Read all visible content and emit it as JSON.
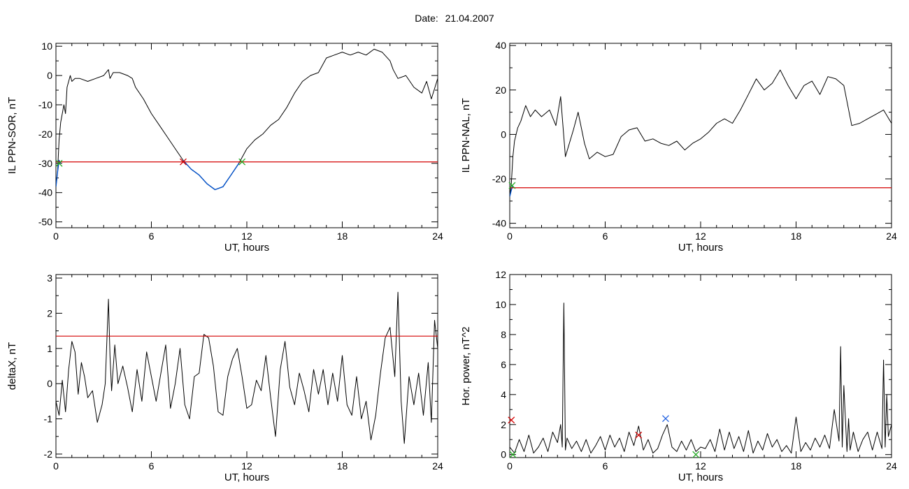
{
  "header": {
    "date_label": "Date:",
    "date_value": "21.04.2007"
  },
  "colors": {
    "trace": "#000000",
    "threshold": "#d40000",
    "highlight": "#0050c8",
    "marker_red": "#d40000",
    "marker_green": "#22aa22",
    "marker_blue": "#2060e0"
  },
  "chart_data": [
    {
      "type": "line",
      "panel": "top-left",
      "xlabel": "UT, hours",
      "ylabel": "IL PPN-SOR, nT",
      "xlim": [
        0,
        24
      ],
      "ylim": [
        -52,
        11
      ],
      "xticks": [
        "0",
        "6",
        "12",
        "18",
        "24"
      ],
      "yticks": [
        "10",
        "0",
        "-10",
        "-20",
        "-30",
        "-40",
        "-50"
      ],
      "ytick_values": [
        10,
        0,
        -10,
        -20,
        -30,
        -40,
        -50
      ],
      "threshold": -29.5,
      "series": [
        {
          "style": "black",
          "x": [
            0,
            0.1,
            0.2,
            0.3,
            0.5,
            0.6,
            0.7,
            0.9,
            1.0,
            1.2,
            1.5,
            2.0,
            2.5,
            3.0,
            3.3,
            3.4,
            3.6,
            4.0,
            4.5,
            4.8,
            5.0,
            5.5,
            6.0,
            6.5,
            7.0,
            7.5,
            8.0,
            8.5,
            9.0,
            9.5,
            10.0,
            10.5,
            11.0,
            11.5,
            12.0,
            12.5,
            13.0,
            13.5,
            14.0,
            14.5,
            15.0,
            15.5,
            16.0,
            16.5,
            17.0,
            17.5,
            18.0,
            18.5,
            19.0,
            19.5,
            20.0,
            20.5,
            21.0,
            21.2,
            21.5,
            22.0,
            22.5,
            23.0,
            23.3,
            23.6,
            24.0
          ],
          "y": [
            -38,
            -33,
            -22,
            -16,
            -10,
            -13,
            -4,
            0,
            -2,
            -1,
            -1,
            -2,
            -1,
            0,
            2,
            -1,
            1,
            1,
            0,
            -1,
            -4,
            -8,
            -13,
            -17,
            -21,
            -25,
            -29,
            -32,
            -34,
            -37,
            -39,
            -38,
            -34,
            -30,
            -25,
            -22,
            -20,
            -17,
            -15,
            -11,
            -6,
            -2,
            0,
            1,
            6,
            7,
            8,
            7,
            8,
            7,
            9,
            8,
            5,
            2,
            -1,
            0,
            -4,
            -6,
            -2,
            -8,
            -1
          ]
        },
        {
          "style": "blue",
          "name": "",
          "x": [
            0,
            0.1,
            0.2,
            0.3,
            8.0,
            8.5,
            9.0,
            9.5,
            10.0,
            10.5,
            11.0,
            11.5
          ],
          "y": [
            -38,
            -33,
            -29,
            -30,
            -29,
            -32,
            -34,
            -37,
            -39,
            -38,
            -34,
            -30
          ],
          "segments": [
            [
              0,
              3
            ],
            [
              4,
              11
            ]
          ]
        }
      ],
      "markers": [
        {
          "x": 0.2,
          "y": -30,
          "color": "green"
        },
        {
          "x": 8.0,
          "y": -29.5,
          "color": "red"
        },
        {
          "x": 11.7,
          "y": -29.5,
          "color": "green"
        }
      ]
    },
    {
      "type": "line",
      "panel": "top-right",
      "xlabel": "UT, hours",
      "ylabel": "IL PPN-NAL, nT",
      "xlim": [
        0,
        24
      ],
      "ylim": [
        -42,
        41
      ],
      "xticks": [
        "0",
        "6",
        "12",
        "18",
        "24"
      ],
      "yticks": [
        "40",
        "20",
        "0",
        "-20",
        "-40"
      ],
      "ytick_values": [
        40,
        20,
        0,
        -20,
        -40
      ],
      "threshold": -24,
      "series": [
        {
          "style": "black",
          "x": [
            0,
            0.1,
            0.2,
            0.3,
            0.5,
            0.7,
            1.0,
            1.3,
            1.6,
            2.0,
            2.5,
            2.9,
            3.2,
            3.5,
            4.0,
            4.3,
            4.7,
            5.0,
            5.5,
            6.0,
            6.5,
            7.0,
            7.5,
            8.0,
            8.5,
            9.0,
            9.5,
            10.0,
            10.5,
            11.0,
            11.5,
            12.0,
            12.5,
            13.0,
            13.5,
            14.0,
            14.5,
            15.0,
            15.5,
            16.0,
            16.5,
            17.0,
            17.5,
            18.0,
            18.5,
            19.0,
            19.5,
            20.0,
            20.5,
            21.0,
            21.5,
            22.0,
            22.5,
            23.0,
            23.5,
            24.0
          ],
          "y": [
            -28,
            -22,
            -10,
            -3,
            3,
            6,
            13,
            8,
            11,
            8,
            11,
            4,
            17,
            -10,
            2,
            10,
            -4,
            -11,
            -8,
            -10,
            -9,
            -1,
            2,
            3,
            -3,
            -2,
            -4,
            -5,
            -3,
            -7,
            -4,
            -2,
            1,
            5,
            7,
            5,
            11,
            18,
            25,
            20,
            23,
            29,
            22,
            16,
            22,
            24,
            18,
            26,
            25,
            22,
            4,
            5,
            7,
            9,
            11,
            5
          ]
        },
        {
          "style": "blue",
          "name": "",
          "x": [
            0,
            0.1,
            0.2
          ],
          "y": [
            -28,
            -25,
            -23
          ],
          "segments": [
            [
              0,
              2
            ]
          ]
        }
      ],
      "markers": [
        {
          "x": 0.15,
          "y": -23,
          "color": "green"
        }
      ]
    },
    {
      "type": "line",
      "panel": "bottom-left",
      "xlabel": "UT, hours",
      "ylabel": "deltaX, nT",
      "xlim": [
        0,
        24
      ],
      "ylim": [
        -2.1,
        3.1
      ],
      "xticks": [
        "0",
        "6",
        "12",
        "18",
        "24"
      ],
      "yticks": [
        "3",
        "2",
        "1",
        "0",
        "-1",
        "-2"
      ],
      "ytick_values": [
        3,
        2,
        1,
        0,
        -1,
        -2
      ],
      "threshold": 1.35,
      "series": [
        {
          "style": "black",
          "x": [
            0,
            0.2,
            0.4,
            0.6,
            0.8,
            1.0,
            1.2,
            1.4,
            1.6,
            1.8,
            2.0,
            2.3,
            2.6,
            2.9,
            3.1,
            3.3,
            3.4,
            3.5,
            3.7,
            3.9,
            4.2,
            4.5,
            4.8,
            5.1,
            5.4,
            5.7,
            6.0,
            6.3,
            6.6,
            6.9,
            7.2,
            7.5,
            7.8,
            8.1,
            8.4,
            8.7,
            9.0,
            9.3,
            9.6,
            9.9,
            10.2,
            10.5,
            10.8,
            11.1,
            11.4,
            11.7,
            12.0,
            12.3,
            12.6,
            12.9,
            13.2,
            13.5,
            13.8,
            14.1,
            14.4,
            14.7,
            15.0,
            15.3,
            15.6,
            15.9,
            16.2,
            16.5,
            16.8,
            17.1,
            17.4,
            17.7,
            18.0,
            18.3,
            18.6,
            18.9,
            19.2,
            19.5,
            19.8,
            20.1,
            20.4,
            20.7,
            21.0,
            21.3,
            21.5,
            21.7,
            21.9,
            22.2,
            22.5,
            22.8,
            23.1,
            23.4,
            23.6,
            23.8,
            24.0
          ],
          "y": [
            -0.5,
            -0.9,
            0.1,
            -0.8,
            0.4,
            1.2,
            0.9,
            -0.3,
            0.6,
            0.2,
            -0.4,
            -0.2,
            -1.1,
            -0.6,
            0.0,
            2.4,
            0.8,
            -0.2,
            1.1,
            0.0,
            0.5,
            -0.1,
            -0.8,
            0.4,
            -0.5,
            0.9,
            0.2,
            -0.5,
            0.3,
            1.1,
            -0.7,
            0.0,
            1.0,
            -0.6,
            -1.0,
            0.2,
            0.3,
            1.4,
            1.3,
            0.5,
            -0.8,
            -0.9,
            0.2,
            0.7,
            1.0,
            0.2,
            -0.7,
            -0.6,
            0.1,
            -0.2,
            0.8,
            -0.4,
            -1.5,
            0.4,
            1.2,
            -0.1,
            -0.6,
            0.3,
            -0.2,
            -0.8,
            0.4,
            -0.3,
            0.4,
            -0.6,
            0.3,
            -0.5,
            0.8,
            -0.6,
            -0.9,
            0.2,
            -1.0,
            -0.5,
            -1.6,
            -0.9,
            0.3,
            1.3,
            1.6,
            0.2,
            2.6,
            -0.5,
            -1.7,
            0.2,
            -0.6,
            0.3,
            -0.9,
            0.6,
            -1.1,
            1.8,
            1.0
          ]
        }
      ],
      "markers": []
    },
    {
      "type": "line",
      "panel": "bottom-right",
      "xlabel": "UT, hours",
      "ylabel": "Hor. power, nT^2",
      "xlim": [
        0,
        24
      ],
      "ylim": [
        -0.2,
        12
      ],
      "xticks": [
        "0",
        "6",
        "12",
        "18",
        "24"
      ],
      "yticks": [
        "12",
        "10",
        "8",
        "6",
        "4",
        "2",
        "0"
      ],
      "ytick_values": [
        12,
        10,
        8,
        6,
        4,
        2,
        0
      ],
      "series": [
        {
          "style": "black",
          "x": [
            0,
            0.3,
            0.6,
            0.9,
            1.2,
            1.5,
            1.8,
            2.1,
            2.4,
            2.7,
            3.0,
            3.2,
            3.3,
            3.4,
            3.5,
            3.6,
            3.9,
            4.2,
            4.5,
            4.8,
            5.1,
            5.4,
            5.7,
            6.0,
            6.3,
            6.6,
            6.9,
            7.2,
            7.5,
            7.8,
            8.1,
            8.4,
            8.7,
            9.0,
            9.3,
            9.6,
            9.9,
            10.2,
            10.5,
            10.8,
            11.1,
            11.4,
            11.7,
            12.0,
            12.3,
            12.6,
            12.9,
            13.2,
            13.5,
            13.8,
            14.1,
            14.4,
            14.7,
            15.0,
            15.3,
            15.6,
            15.9,
            16.2,
            16.5,
            16.8,
            17.1,
            17.4,
            17.7,
            18.0,
            18.3,
            18.6,
            18.9,
            19.2,
            19.5,
            19.8,
            20.1,
            20.4,
            20.7,
            20.8,
            20.9,
            21.0,
            21.2,
            21.3,
            21.4,
            21.6,
            21.9,
            22.2,
            22.5,
            22.8,
            23.1,
            23.4,
            23.5,
            23.6,
            23.7,
            23.8,
            24.0
          ],
          "y": [
            0.5,
            0.1,
            1.0,
            0.2,
            1.3,
            0.1,
            0.5,
            1.1,
            0.2,
            1.5,
            0.8,
            2.0,
            0.5,
            10.1,
            0.3,
            1.1,
            0.4,
            0.9,
            0.2,
            1.0,
            0.1,
            0.6,
            1.2,
            0.3,
            1.3,
            0.5,
            1.1,
            0.2,
            1.5,
            0.6,
            1.9,
            0.3,
            1.0,
            0.1,
            0.4,
            1.3,
            2.0,
            0.5,
            0.2,
            0.9,
            0.3,
            1.0,
            0.2,
            0.5,
            0.4,
            1.0,
            0.2,
            1.7,
            0.3,
            1.5,
            0.4,
            1.2,
            0.2,
            1.6,
            0.1,
            0.9,
            0.3,
            1.4,
            0.5,
            1.0,
            0.2,
            0.6,
            0.1,
            2.5,
            0.2,
            0.8,
            0.3,
            1.1,
            0.5,
            1.3,
            0.4,
            3.0,
            0.9,
            7.2,
            0.5,
            4.6,
            0.2,
            2.4,
            0.3,
            1.5,
            0.2,
            1.0,
            1.5,
            0.3,
            1.5,
            0.4,
            6.3,
            0.5,
            4.0,
            1.2,
            2.0
          ]
        }
      ],
      "markers": [
        {
          "x": 0.1,
          "y": 2.3,
          "color": "red"
        },
        {
          "x": 0.2,
          "y": 0.0,
          "color": "green"
        },
        {
          "x": 8.1,
          "y": 1.3,
          "color": "red"
        },
        {
          "x": 9.8,
          "y": 2.4,
          "color": "blue"
        },
        {
          "x": 11.7,
          "y": 0.0,
          "color": "green"
        }
      ]
    }
  ]
}
